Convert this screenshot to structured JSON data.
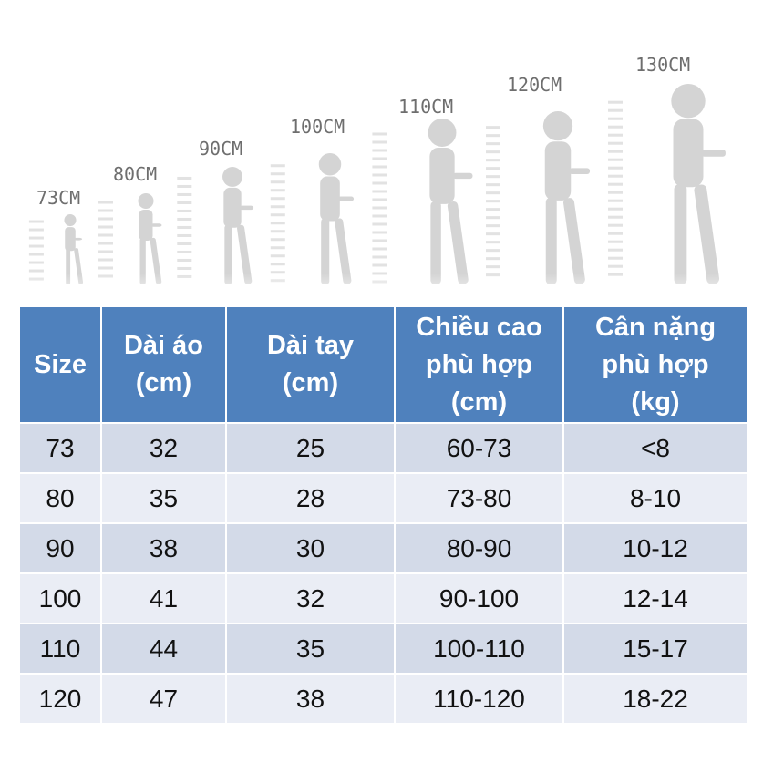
{
  "height_markers": [
    "73CM",
    "80CM",
    "90CM",
    "100CM",
    "110CM",
    "120CM",
    "130CM"
  ],
  "table": {
    "headers": {
      "size": "Size",
      "length_line1": "Dài áo",
      "length_line2": "(cm)",
      "sleeve_line1": "Dài tay",
      "sleeve_line2": "(cm)",
      "height_line1": "Chiều cao",
      "height_line2": "phù hợp",
      "height_line3": "(cm)",
      "weight_line1": "Cân nặng",
      "weight_line2": "phù hợp",
      "weight_line3": "(kg)"
    },
    "rows": [
      [
        "73",
        "32",
        "25",
        "60-73",
        "<8"
      ],
      [
        "80",
        "35",
        "28",
        "73-80",
        "8-10"
      ],
      [
        "90",
        "38",
        "30",
        "80-90",
        "10-12"
      ],
      [
        "100",
        "41",
        "32",
        "90-100",
        "12-14"
      ],
      [
        "110",
        "44",
        "35",
        "100-110",
        "15-17"
      ],
      [
        "120",
        "47",
        "38",
        "110-120",
        "18-22"
      ]
    ]
  },
  "colors": {
    "header_bg": "#4f81bd",
    "row_odd_bg": "#d3dae8",
    "row_even_bg": "#eaedf5",
    "silhouette": "#d4d4d4"
  }
}
